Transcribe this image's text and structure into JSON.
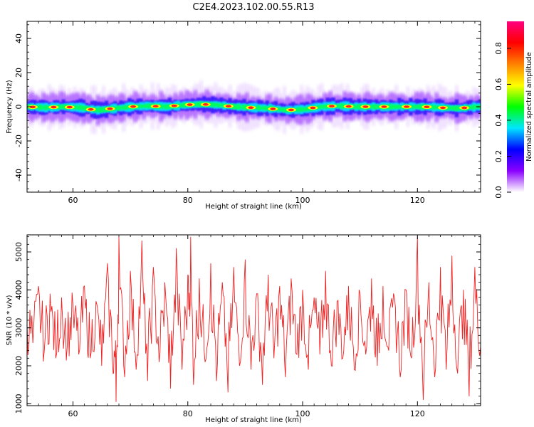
{
  "figure": {
    "title": "C2E4.2023.102.00.55.R13"
  },
  "chart_data": [
    {
      "type": "heatmap",
      "title": "",
      "xlabel": "Height of straight line (km)",
      "ylabel": "Frequency (Hz)",
      "xlim": [
        52,
        131
      ],
      "ylim": [
        -50,
        50
      ],
      "xticks": [
        60,
        80,
        100,
        120
      ],
      "xtick_labels": [
        "60",
        "80",
        "100",
        "120"
      ],
      "yticks": [
        -40,
        -20,
        0,
        20,
        40
      ],
      "ytick_labels": [
        "-40",
        "-20",
        "0",
        "20",
        "40"
      ],
      "grid": false,
      "description_of_values": "Spectral power concentrated near 0 Hz across all heights; peak amplitude band within about ±4 Hz, diffuse low-amplitude spread to about ±12 Hz.",
      "center_frequency_hz": [
        [
          52,
          0
        ],
        [
          55,
          -0.5
        ],
        [
          58,
          0
        ],
        [
          61,
          -0.5
        ],
        [
          64,
          -2
        ],
        [
          67,
          -1
        ],
        [
          70,
          0
        ],
        [
          73,
          0.5
        ],
        [
          76,
          0
        ],
        [
          79,
          1
        ],
        [
          82,
          1.5
        ],
        [
          85,
          1
        ],
        [
          88,
          0
        ],
        [
          91,
          -0.5
        ],
        [
          94,
          -1
        ],
        [
          97,
          -2
        ],
        [
          100,
          -1.5
        ],
        [
          103,
          0
        ],
        [
          106,
          0.5
        ],
        [
          109,
          0
        ],
        [
          112,
          0
        ],
        [
          115,
          0
        ],
        [
          118,
          0
        ],
        [
          121,
          0
        ],
        [
          124,
          -0.5
        ],
        [
          127,
          -1
        ],
        [
          130,
          0
        ]
      ],
      "colorbar": {
        "label": "Normalized spectral amplitude",
        "range": [
          0,
          0.95
        ],
        "ticks": [
          0.0,
          0.2,
          0.4,
          0.6,
          0.8
        ],
        "tick_labels": [
          "0.0",
          "0.2",
          "0.4",
          "0.6",
          "0.8"
        ],
        "colors": [
          "#ffffff",
          "#8a00ff",
          "#0000ff",
          "#00e6ff",
          "#00ff00",
          "#ffff00",
          "#ff8000",
          "#ff0000",
          "#ff0080"
        ]
      }
    },
    {
      "type": "line",
      "title": "",
      "xlabel": "Height of straight line (km)",
      "ylabel": "SNR (10 * v/v)",
      "xlim": [
        52,
        131
      ],
      "ylim": [
        950,
        5450
      ],
      "xticks": [
        60,
        80,
        100,
        120
      ],
      "xtick_labels": [
        "60",
        "80",
        "100",
        "120"
      ],
      "yticks": [
        1000,
        2000,
        3000,
        4000,
        5000
      ],
      "ytick_labels": [
        "1000",
        "2000",
        "3000",
        "4000",
        "5000"
      ],
      "grid": false,
      "series": [
        {
          "color": "#ee2222",
          "description": "Highly noisy SNR signal fluctuating mostly between ~2000 and ~4000 with spikes up to ~5400 and dips to ~1000.",
          "x": [
            52,
            53,
            54,
            55,
            56,
            57,
            58,
            59,
            60,
            61,
            62,
            63,
            64,
            65,
            66,
            67,
            67.5,
            68,
            69,
            70,
            71,
            72,
            73,
            74,
            75,
            76,
            77,
            78,
            79,
            80,
            80.5,
            81,
            82,
            83,
            84,
            85,
            86,
            87,
            88,
            89,
            90,
            91,
            92,
            93,
            94,
            95,
            96,
            97,
            98,
            99,
            100,
            101,
            102,
            103,
            104,
            105,
            106,
            107,
            108,
            109,
            110,
            111,
            112,
            113,
            114,
            115,
            116,
            117,
            118,
            119,
            120,
            121,
            122,
            123,
            124,
            125,
            126,
            127,
            128,
            129,
            130,
            131
          ],
          "y": [
            3100,
            2600,
            4100,
            2400,
            3900,
            2200,
            3800,
            2500,
            3600,
            2300,
            4100,
            2200,
            3700,
            2000,
            4700,
            1800,
            1050,
            5400,
            1700,
            4500,
            1900,
            5300,
            1600,
            4600,
            2100,
            4200,
            1400,
            5100,
            1900,
            4400,
            5400,
            1500,
            4300,
            2100,
            4700,
            1600,
            4200,
            1300,
            4600,
            2000,
            4800,
            1900,
            3900,
            1500,
            4400,
            2200,
            4100,
            1700,
            4300,
            2300,
            4000,
            1900,
            3800,
            2300,
            4500,
            2000,
            3700,
            2200,
            4100,
            1900,
            3900,
            2300,
            4300,
            2000,
            4100,
            2400,
            3800,
            1700,
            4000,
            2200,
            5400,
            1100,
            4200,
            1700,
            4600,
            1900,
            4900,
            1800,
            4000,
            1200,
            4600,
            2500
          ]
        }
      ]
    }
  ]
}
